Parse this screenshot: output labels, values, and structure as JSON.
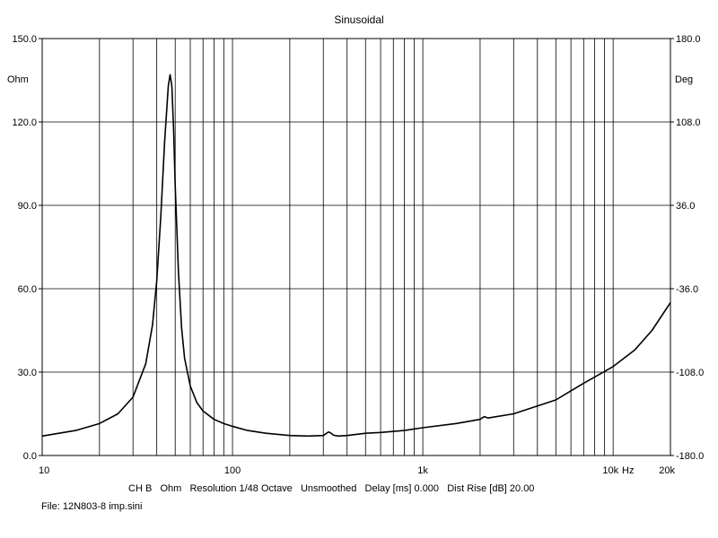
{
  "chart_data": {
    "type": "line",
    "title": "Sinusoidal",
    "x_scale": "log",
    "xlim": [
      10,
      20000
    ],
    "ylim": [
      0,
      150
    ],
    "y2lim": [
      -180,
      180
    ],
    "grid": true,
    "y_ticks": [
      "0.0",
      "30.0",
      "60.0",
      "90.0",
      "120.0",
      "150.0"
    ],
    "y_tick_values": [
      0,
      30,
      60,
      90,
      120,
      150
    ],
    "y_unit": "Ohm",
    "y2_ticks": [
      "-180.0",
      "-108.0",
      "-36.0",
      "36.0",
      "108.0",
      "180.0"
    ],
    "y2_tick_values": [
      -180,
      -108,
      -36,
      36,
      108,
      180
    ],
    "y2_unit": "Deg",
    "x_ticks": [
      "10",
      "100",
      "1k",
      "10k",
      "20k"
    ],
    "x_tick_values": [
      10,
      100,
      1000,
      10000,
      20000
    ],
    "x_unit": "Hz",
    "series": [
      {
        "color": "#000000",
        "x": [
          10,
          15,
          20,
          25,
          30,
          35,
          38,
          40,
          42,
          44,
          46,
          47,
          48,
          49,
          50,
          52,
          54,
          56,
          60,
          65,
          70,
          80,
          90,
          100,
          120,
          150,
          200,
          250,
          300,
          320,
          330,
          340,
          360,
          400,
          500,
          600,
          800,
          1000,
          1500,
          2000,
          2100,
          2200,
          3000,
          5000,
          7000,
          10000,
          13000,
          16000,
          20000
        ],
        "y": [
          7,
          9,
          11.5,
          15,
          21,
          33,
          47,
          63,
          86,
          113,
          133,
          137,
          133,
          118,
          97,
          66,
          46,
          35,
          25,
          19,
          16,
          13,
          11.5,
          10.5,
          9,
          8,
          7.2,
          7,
          7.2,
          8.5,
          8,
          7.3,
          7,
          7.2,
          8,
          8.3,
          9,
          10,
          11.5,
          13,
          14,
          13.5,
          15,
          20,
          26,
          32,
          38,
          45,
          55
        ]
      }
    ]
  },
  "footer": {
    "legend_line": "CH B   Ohm   Resolution 1/48 Octave   Unsmoothed   Delay [ms] 0.000   Dist Rise [dB] 20.00",
    "file_line": "File: 12N803-8 imp.sini"
  }
}
